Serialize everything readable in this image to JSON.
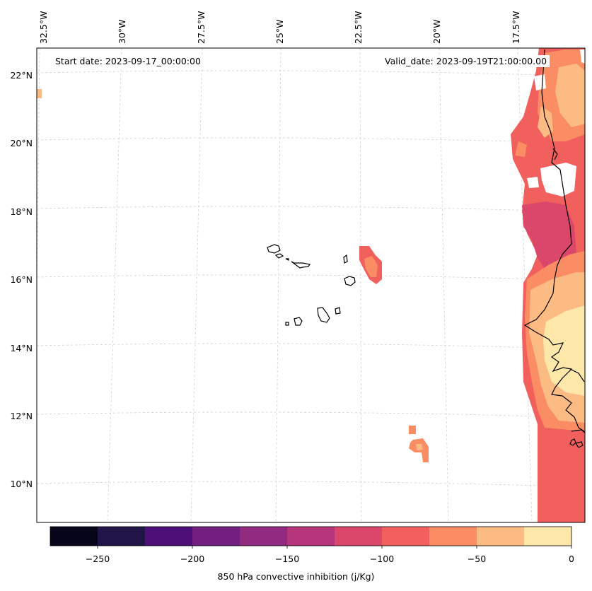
{
  "header": {
    "start_date": "Start date: 2023-09-17_00:00:00",
    "valid_date": "Valid_date: 2023-09-19T21:00:00.00"
  },
  "longitude_labels": [
    "32.5°W",
    "30°W",
    "27.5°W",
    "25°W",
    "22.5°W",
    "20°W",
    "17.5°W"
  ],
  "latitude_labels": [
    "22°N",
    "20°N",
    "18°N",
    "16°N",
    "14°N",
    "12°N",
    "10°N"
  ],
  "colorbar": {
    "label": "850 hPa convective inhibition (j/Kg)",
    "tick_labels": [
      "−250",
      "−200",
      "−150",
      "−100",
      "−50",
      "0"
    ],
    "levels": [
      -275,
      -250,
      -225,
      -200,
      -175,
      -150,
      -125,
      -100,
      -75,
      -50,
      -25,
      0
    ],
    "colors": [
      "#06051a",
      "#201449",
      "#4c1078",
      "#721f81",
      "#922b80",
      "#b5367a",
      "#db476a",
      "#f1605d",
      "#fa8d63",
      "#fdbb84",
      "#fde7a9"
    ]
  },
  "colors": {
    "coastline": "#000000",
    "gridline": "#d0d0d0",
    "field_purple": "#db476a",
    "field_red": "#f1605d",
    "field_orange": "#fa8d63",
    "field_light": "#fdbb84",
    "field_yellow": "#fde7a9"
  }
}
